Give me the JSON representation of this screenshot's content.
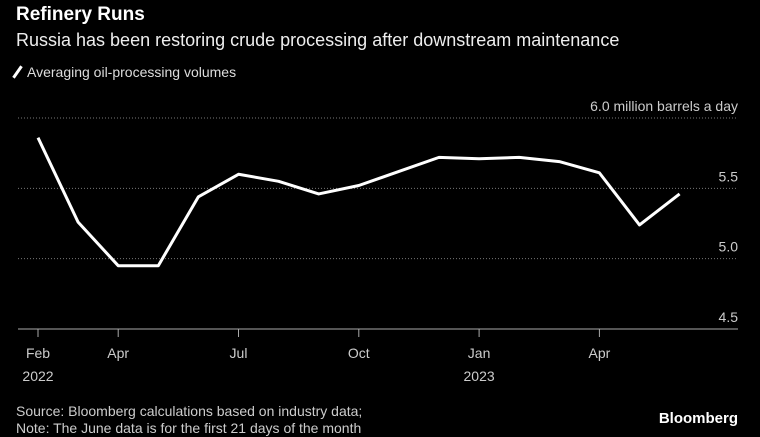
{
  "title": "Refinery Runs",
  "subtitle": "Russia has been restoring crude processing after downstream maintenance",
  "legend": "Averaging oil-processing volumes",
  "source": "Source: Bloomberg calculations based on industry data;",
  "note": "Note: The June data is for the first 21 days of the month",
  "brand": "Bloomberg",
  "chart_data": {
    "type": "line",
    "ylabel": "million barrels a day",
    "ylim": [
      4.5,
      6.0
    ],
    "yticks": [
      "4.5",
      "5.0",
      "5.5",
      "6.0"
    ],
    "xticks": [
      {
        "label": "Feb",
        "sub": "2022",
        "i": 0
      },
      {
        "label": "Apr",
        "sub": "",
        "i": 2
      },
      {
        "label": "Jul",
        "sub": "",
        "i": 5
      },
      {
        "label": "Oct",
        "sub": "",
        "i": 8
      },
      {
        "label": "Jan",
        "sub": "2023",
        "i": 11
      },
      {
        "label": "Apr",
        "sub": "",
        "i": 14
      }
    ],
    "x": [
      "2022-02",
      "2022-03",
      "2022-04",
      "2022-05",
      "2022-06",
      "2022-07",
      "2022-08",
      "2022-09",
      "2022-10",
      "2022-11",
      "2022-12",
      "2023-01",
      "2023-02",
      "2023-03",
      "2023-04",
      "2023-05",
      "2023-06"
    ],
    "series": [
      {
        "name": "Averaging oil-processing volumes",
        "color": "#ffffff",
        "values": [
          5.86,
          5.26,
          4.95,
          4.95,
          5.44,
          5.6,
          5.55,
          5.46,
          5.52,
          5.62,
          5.72,
          5.71,
          5.72,
          5.69,
          5.61,
          5.24,
          5.46
        ]
      }
    ],
    "grid": true
  }
}
